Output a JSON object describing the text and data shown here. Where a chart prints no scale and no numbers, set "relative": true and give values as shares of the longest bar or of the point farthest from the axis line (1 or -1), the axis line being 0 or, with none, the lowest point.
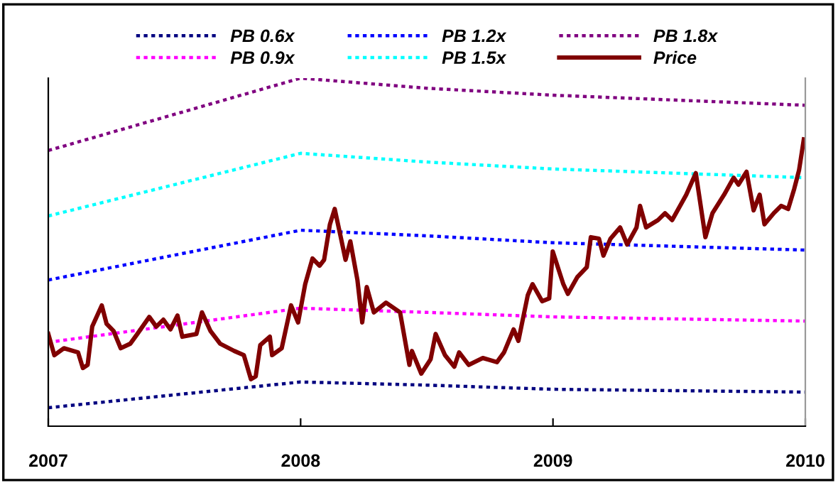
{
  "chart_data": {
    "type": "line",
    "relative": true,
    "legend": "top",
    "grid": false,
    "marker": "none",
    "xlim": [
      2007,
      2010
    ],
    "xticks": [
      2007,
      2008,
      2009,
      2010
    ],
    "series": [
      {
        "name": "PB 0.6x",
        "color": "#000080",
        "line_style": "dotted",
        "x": [
          2007,
          2008,
          2008.5,
          2009,
          2010
        ],
        "values": [
          0.053,
          0.127,
          0.118,
          0.106,
          0.098
        ]
      },
      {
        "name": "PB 0.9x",
        "color": "#ff00ff",
        "line_style": "dotted",
        "x": [
          2007,
          2008,
          2008.5,
          2009,
          2010
        ],
        "values": [
          0.241,
          0.339,
          0.327,
          0.314,
          0.302
        ]
      },
      {
        "name": "PB 1.2x",
        "color": "#0000ff",
        "line_style": "dotted",
        "x": [
          2007,
          2008,
          2008.5,
          2009,
          2010
        ],
        "values": [
          0.42,
          0.563,
          0.547,
          0.527,
          0.506
        ]
      },
      {
        "name": "PB 1.5x",
        "color": "#00ffff",
        "line_style": "dotted",
        "x": [
          2007,
          2008,
          2008.5,
          2009,
          2010
        ],
        "values": [
          0.604,
          0.784,
          0.759,
          0.739,
          0.714
        ]
      },
      {
        "name": "PB 1.8x",
        "color": "#800080",
        "line_style": "dotted",
        "x": [
          2007,
          2008,
          2008.5,
          2009,
          2010
        ],
        "values": [
          0.792,
          1.0,
          0.971,
          0.951,
          0.922
        ]
      },
      {
        "name": "Price",
        "color": "#800000",
        "line_style": "solid",
        "x": [
          2007,
          2007.024,
          2007.062,
          2007.118,
          2007.137,
          2007.156,
          2007.174,
          2007.212,
          2007.231,
          2007.259,
          2007.287,
          2007.325,
          2007.353,
          2007.4,
          2007.428,
          2007.456,
          2007.484,
          2007.512,
          2007.531,
          2007.587,
          2007.609,
          2007.643,
          2007.681,
          2007.737,
          2007.775,
          2007.803,
          2007.822,
          2007.84,
          2007.878,
          2007.887,
          2007.925,
          2007.962,
          2007.99,
          2008.018,
          2008.047,
          2008.075,
          2008.093,
          2008.116,
          2008.135,
          2008.159,
          2008.178,
          2008.197,
          2008.225,
          2008.244,
          2008.262,
          2008.29,
          2008.338,
          2008.394,
          2008.431,
          2008.441,
          2008.478,
          2008.515,
          2008.535,
          2008.572,
          2008.609,
          2008.628,
          2008.666,
          2008.722,
          2008.778,
          2008.806,
          2008.844,
          2008.863,
          2008.9,
          2008.919,
          2008.957,
          2008.985,
          2008.999,
          2009.041,
          2009.059,
          2009.097,
          2009.134,
          2009.15,
          2009.182,
          2009.2,
          2009.228,
          2009.266,
          2009.294,
          2009.331,
          2009.345,
          2009.369,
          2009.416,
          2009.444,
          2009.472,
          2009.528,
          2009.566,
          2009.604,
          2009.632,
          2009.678,
          2009.716,
          2009.735,
          2009.767,
          2009.795,
          2009.819,
          2009.838,
          2009.875,
          2009.904,
          2009.932,
          2009.956,
          2009.975,
          2009.994
        ],
        "values": [
          0.265,
          0.204,
          0.224,
          0.212,
          0.167,
          0.176,
          0.286,
          0.347,
          0.294,
          0.273,
          0.224,
          0.237,
          0.265,
          0.314,
          0.286,
          0.306,
          0.278,
          0.318,
          0.257,
          0.265,
          0.327,
          0.273,
          0.237,
          0.216,
          0.204,
          0.135,
          0.143,
          0.233,
          0.257,
          0.204,
          0.224,
          0.347,
          0.298,
          0.408,
          0.482,
          0.461,
          0.478,
          0.58,
          0.624,
          0.543,
          0.478,
          0.531,
          0.42,
          0.298,
          0.4,
          0.327,
          0.355,
          0.327,
          0.176,
          0.216,
          0.151,
          0.192,
          0.265,
          0.204,
          0.171,
          0.212,
          0.176,
          0.196,
          0.184,
          0.212,
          0.278,
          0.245,
          0.376,
          0.408,
          0.359,
          0.367,
          0.502,
          0.408,
          0.38,
          0.429,
          0.457,
          0.543,
          0.539,
          0.49,
          0.539,
          0.571,
          0.522,
          0.571,
          0.633,
          0.571,
          0.592,
          0.612,
          0.592,
          0.665,
          0.727,
          0.543,
          0.612,
          0.665,
          0.714,
          0.694,
          0.731,
          0.62,
          0.665,
          0.58,
          0.612,
          0.633,
          0.624,
          0.682,
          0.735,
          0.824
        ]
      }
    ]
  }
}
